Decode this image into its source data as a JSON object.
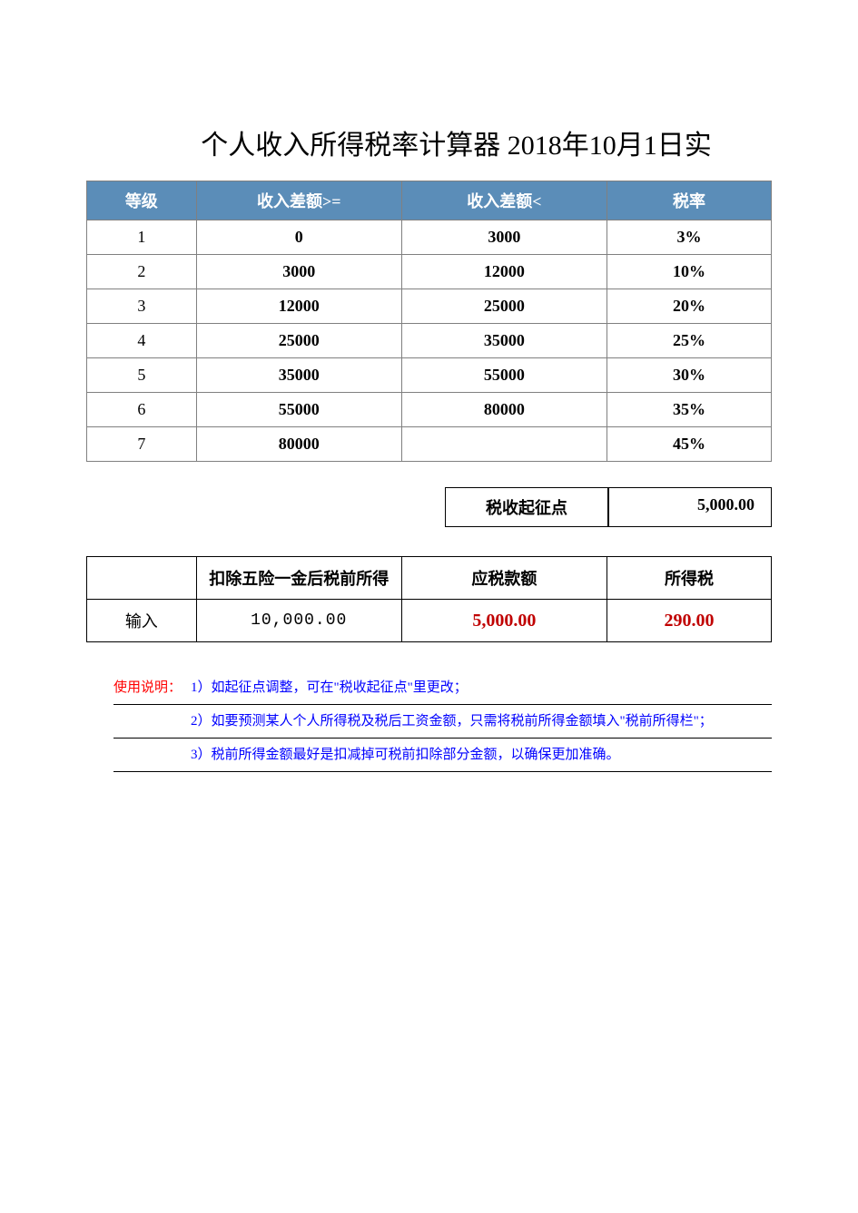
{
  "title": "个人收入所得税率计算器   2018年10月1日实",
  "brackets": {
    "headers": [
      "等级",
      "收入差额>=",
      "收入差额<",
      "税率"
    ],
    "rows": [
      {
        "level": "1",
        "min": "0",
        "max": "3000",
        "rate": "3%"
      },
      {
        "level": "2",
        "min": "3000",
        "max": "12000",
        "rate": "10%"
      },
      {
        "level": "3",
        "min": "12000",
        "max": "25000",
        "rate": "20%"
      },
      {
        "level": "4",
        "min": "25000",
        "max": "35000",
        "rate": "25%"
      },
      {
        "level": "5",
        "min": "35000",
        "max": "55000",
        "rate": "30%"
      },
      {
        "level": "6",
        "min": "55000",
        "max": "80000",
        "rate": "35%"
      },
      {
        "level": "7",
        "min": "80000",
        "max": "",
        "rate": "45%"
      }
    ],
    "header_bg": "#5b8db8",
    "header_fg": "#ffffff",
    "border_color": "#808080",
    "fontsize_header": 18,
    "fontsize_body": 18
  },
  "threshold": {
    "label": "税收起征点",
    "value": "5,000.00"
  },
  "calc": {
    "headers": [
      "",
      "扣除五险一金后税前所得",
      "应税款额",
      "所得税"
    ],
    "input_label": "输入",
    "input_value": "10,000.00",
    "taxable": "5,000.00",
    "tax": "290.00",
    "red_color": "#c00000"
  },
  "notes": {
    "head": "使用说明：",
    "items": [
      "1）如起征点调整，可在\"税收起征点\"里更改；",
      "2）如要预测某人个人所得税及税后工资金额，只需将税前所得金额填入\"税前所得栏\"；",
      "3）税前所得金额最好是扣减掉可税前扣除部分金额，以确保更加准确。"
    ],
    "head_color": "#ff0000",
    "body_color": "#0000ff",
    "fontsize": 15
  }
}
